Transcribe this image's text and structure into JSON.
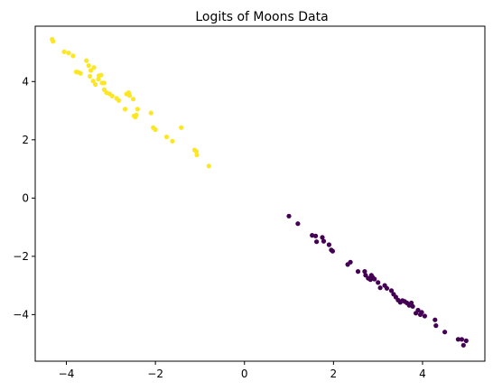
{
  "chart_data": {
    "type": "scatter",
    "title": "Logits of Moons Data",
    "xlabel": "",
    "ylabel": "",
    "xlim": [
      -4.7,
      5.4
    ],
    "ylim": [
      -5.6,
      5.9
    ],
    "xticks": [
      -4,
      -2,
      0,
      2,
      4
    ],
    "yticks": [
      -4,
      -2,
      0,
      2,
      4
    ],
    "grid": false,
    "series": [
      {
        "color": "#fde725",
        "points": [
          [
            -4.32,
            5.45
          ],
          [
            -4.3,
            5.38
          ],
          [
            -4.05,
            5.02
          ],
          [
            -3.95,
            4.98
          ],
          [
            -3.85,
            4.88
          ],
          [
            -3.78,
            4.33
          ],
          [
            -3.73,
            4.32
          ],
          [
            -3.68,
            4.28
          ],
          [
            -3.55,
            4.72
          ],
          [
            -3.5,
            4.55
          ],
          [
            -3.45,
            4.38
          ],
          [
            -3.47,
            4.18
          ],
          [
            -3.4,
            4.02
          ],
          [
            -3.38,
            4.48
          ],
          [
            -3.35,
            3.9
          ],
          [
            -3.28,
            4.08
          ],
          [
            -3.27,
            4.2
          ],
          [
            -3.22,
            4.22
          ],
          [
            -3.2,
            3.95
          ],
          [
            -3.15,
            3.95
          ],
          [
            -3.15,
            3.72
          ],
          [
            -3.1,
            3.62
          ],
          [
            -3.03,
            3.58
          ],
          [
            -2.97,
            3.5
          ],
          [
            -2.87,
            3.42
          ],
          [
            -2.82,
            3.35
          ],
          [
            -2.65,
            3.57
          ],
          [
            -2.6,
            3.62
          ],
          [
            -2.58,
            3.52
          ],
          [
            -2.5,
            3.4
          ],
          [
            -2.68,
            3.05
          ],
          [
            -2.48,
            2.82
          ],
          [
            -2.45,
            2.78
          ],
          [
            -2.43,
            2.85
          ],
          [
            -2.4,
            3.05
          ],
          [
            -2.1,
            2.92
          ],
          [
            -2.05,
            2.42
          ],
          [
            -2.0,
            2.35
          ],
          [
            -1.75,
            2.1
          ],
          [
            -1.62,
            1.95
          ],
          [
            -1.42,
            2.42
          ],
          [
            -1.12,
            1.65
          ],
          [
            -1.08,
            1.6
          ],
          [
            -1.07,
            1.48
          ],
          [
            -0.8,
            1.1
          ]
        ]
      },
      {
        "color": "#440154",
        "points": [
          [
            1.0,
            -0.62
          ],
          [
            1.2,
            -0.88
          ],
          [
            1.52,
            -1.28
          ],
          [
            1.6,
            -1.3
          ],
          [
            1.62,
            -1.5
          ],
          [
            1.75,
            -1.35
          ],
          [
            1.78,
            -1.48
          ],
          [
            1.9,
            -1.6
          ],
          [
            1.95,
            -1.78
          ],
          [
            1.98,
            -1.82
          ],
          [
            2.32,
            -2.28
          ],
          [
            2.38,
            -2.2
          ],
          [
            2.55,
            -2.52
          ],
          [
            2.7,
            -2.52
          ],
          [
            2.72,
            -2.65
          ],
          [
            2.78,
            -2.75
          ],
          [
            2.83,
            -2.8
          ],
          [
            2.85,
            -2.65
          ],
          [
            2.88,
            -2.72
          ],
          [
            2.92,
            -2.78
          ],
          [
            3.0,
            -2.9
          ],
          [
            3.05,
            -3.08
          ],
          [
            3.15,
            -3.0
          ],
          [
            3.2,
            -3.1
          ],
          [
            3.3,
            -3.18
          ],
          [
            3.35,
            -3.3
          ],
          [
            3.4,
            -3.4
          ],
          [
            3.45,
            -3.5
          ],
          [
            3.5,
            -3.58
          ],
          [
            3.55,
            -3.52
          ],
          [
            3.6,
            -3.55
          ],
          [
            3.65,
            -3.6
          ],
          [
            3.7,
            -3.68
          ],
          [
            3.75,
            -3.6
          ],
          [
            3.78,
            -3.72
          ],
          [
            3.85,
            -3.95
          ],
          [
            3.9,
            -3.85
          ],
          [
            3.95,
            -4.0
          ],
          [
            3.98,
            -3.92
          ],
          [
            4.05,
            -4.05
          ],
          [
            4.28,
            -4.18
          ],
          [
            4.3,
            -4.38
          ],
          [
            4.5,
            -4.6
          ],
          [
            4.8,
            -4.85
          ],
          [
            4.88,
            -4.85
          ],
          [
            4.92,
            -5.05
          ],
          [
            4.98,
            -4.9
          ]
        ]
      }
    ]
  }
}
